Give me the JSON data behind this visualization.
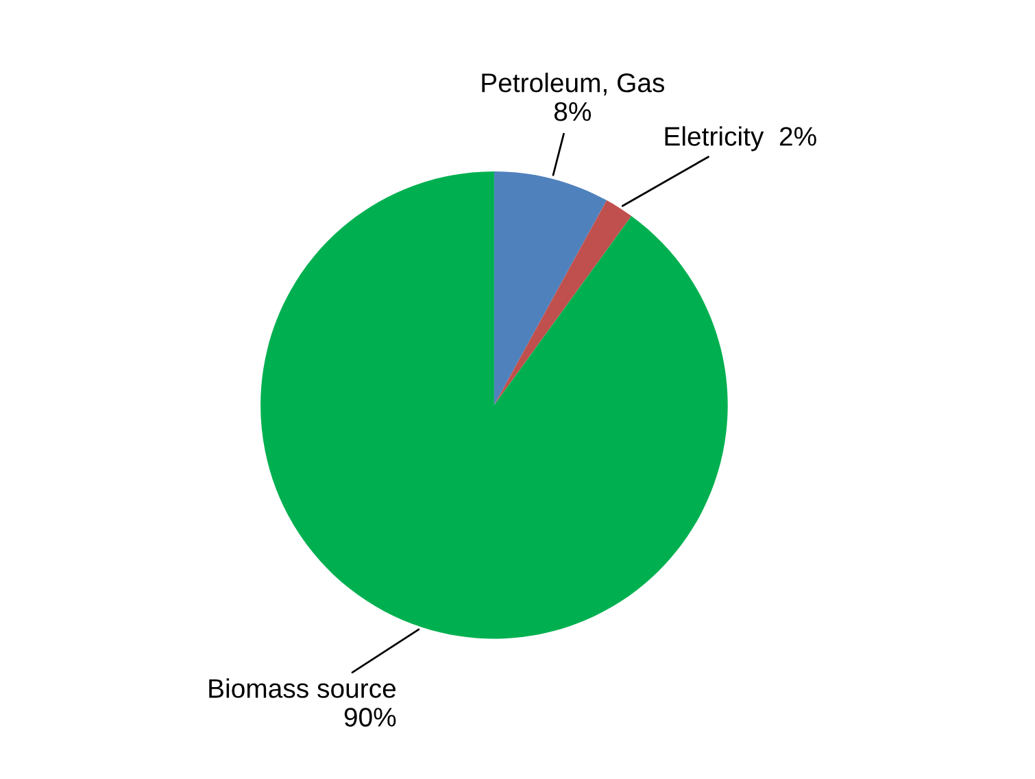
{
  "chart_data": {
    "type": "pie",
    "categories": [
      "Petroleum, Gas",
      "Eletricity",
      "Biomass source"
    ],
    "values": [
      8,
      2,
      90
    ],
    "value_labels": [
      "8%",
      "2%",
      "90%"
    ],
    "colors": [
      "#4f81bd",
      "#c0504d",
      "#00b050"
    ]
  }
}
